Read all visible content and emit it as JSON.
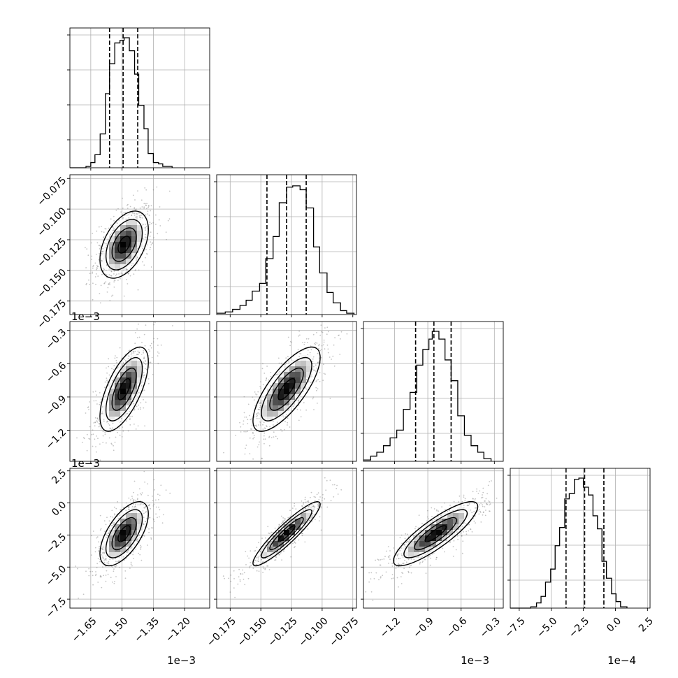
{
  "chart_data": {
    "type": "corner",
    "grid": true,
    "params": [
      {
        "id": "p0",
        "range": [
          -0.00175,
          -0.00108
        ],
        "ticks": [
          -0.00165,
          -0.0015,
          -0.00135,
          -0.0012
        ],
        "tick_labels": [
          "−1.65",
          "−1.50",
          "−1.35",
          "−1.20"
        ],
        "offset_label": "1e−3",
        "quantiles": [
          -0.00156,
          -0.001495,
          -0.001425
        ],
        "hist_bins": [
          [
            -0.00175,
            0.0
          ],
          [
            -0.001673,
            0.01
          ],
          [
            -0.00165,
            0.04
          ],
          [
            -0.00163,
            0.1
          ],
          [
            -0.001605,
            0.26
          ],
          [
            -0.00158,
            0.57
          ],
          [
            -0.00156,
            0.8
          ],
          [
            -0.001535,
            0.96
          ],
          [
            -0.00151,
            0.98
          ],
          [
            -0.00149,
            1.0
          ],
          [
            -0.001465,
            0.9
          ],
          [
            -0.00144,
            0.72
          ],
          [
            -0.00142,
            0.48
          ],
          [
            -0.001395,
            0.3
          ],
          [
            -0.001375,
            0.11
          ],
          [
            -0.00135,
            0.04
          ],
          [
            -0.001325,
            0.03
          ],
          [
            -0.001305,
            0.01
          ],
          [
            -0.001283,
            0.01
          ],
          [
            -0.00126,
            0.0
          ]
        ]
      },
      {
        "id": "p1",
        "range": [
          -0.186,
          -0.072
        ],
        "ticks": [
          -0.175,
          -0.15,
          -0.125,
          -0.1,
          -0.075
        ],
        "tick_labels": [
          "−0.175",
          "−0.150",
          "−0.125",
          "−0.100",
          "−0.075"
        ],
        "offset_label": "",
        "quantiles": [
          -0.145,
          -0.129,
          -0.113
        ],
        "hist_bins": [
          [
            -0.186,
            0.01
          ],
          [
            -0.179,
            0.02
          ],
          [
            -0.173,
            0.04
          ],
          [
            -0.167,
            0.07
          ],
          [
            -0.162,
            0.11
          ],
          [
            -0.157,
            0.18
          ],
          [
            -0.151,
            0.24
          ],
          [
            -0.146,
            0.43
          ],
          [
            -0.14,
            0.6
          ],
          [
            -0.135,
            0.86
          ],
          [
            -0.129,
            0.98
          ],
          [
            -0.124,
            0.99
          ],
          [
            -0.118,
            0.96
          ],
          [
            -0.113,
            0.82
          ],
          [
            -0.107,
            0.52
          ],
          [
            -0.102,
            0.32
          ],
          [
            -0.096,
            0.17
          ],
          [
            -0.091,
            0.09
          ],
          [
            -0.085,
            0.03
          ],
          [
            -0.08,
            0.01
          ],
          [
            -0.074,
            0.0
          ]
        ]
      },
      {
        "id": "p2",
        "range": [
          -0.00148,
          -0.00022
        ],
        "ticks": [
          -0.0012,
          -0.0009,
          -0.0006,
          -0.0003
        ],
        "tick_labels": [
          "−1.2",
          "−0.9",
          "−0.6",
          "−0.3"
        ],
        "offset_label": "1e−3",
        "quantiles": [
          -0.00101,
          -0.000845,
          -0.00069
        ],
        "hist_bins": [
          [
            -0.00148,
            0.01
          ],
          [
            -0.001415,
            0.04
          ],
          [
            -0.00136,
            0.07
          ],
          [
            -0.0013,
            0.12
          ],
          [
            -0.00124,
            0.18
          ],
          [
            -0.00118,
            0.24
          ],
          [
            -0.00112,
            0.4
          ],
          [
            -0.00106,
            0.53
          ],
          [
            -0.001,
            0.74
          ],
          [
            -0.000945,
            0.86
          ],
          [
            -0.00089,
            0.94
          ],
          [
            -0.00086,
            1.0
          ],
          [
            -0.0008,
            0.94
          ],
          [
            -0.000745,
            0.78
          ],
          [
            -0.00069,
            0.62
          ],
          [
            -0.00063,
            0.35
          ],
          [
            -0.00057,
            0.2
          ],
          [
            -0.00051,
            0.12
          ],
          [
            -0.00045,
            0.07
          ],
          [
            -0.000395,
            0.02
          ],
          [
            -0.00033,
            0.0
          ]
        ]
      },
      {
        "id": "p3",
        "range": [
          -0.00082,
          0.00027
        ],
        "ticks": [
          -0.00075,
          -0.0005,
          -0.00025,
          0.0,
          0.00025
        ],
        "tick_labels": [
          "−7.5",
          "−5.0",
          "−2.5",
          "0.0",
          "2.5"
        ],
        "offset_label": "1e−4",
        "quantiles": [
          -0.000385,
          -0.00024,
          -9e-05
        ],
        "hist_bins": [
          [
            -0.00082,
            0.0
          ],
          [
            -0.00066,
            0.01
          ],
          [
            -0.000615,
            0.04
          ],
          [
            -0.00058,
            0.09
          ],
          [
            -0.000545,
            0.2
          ],
          [
            -0.000505,
            0.3
          ],
          [
            -0.00047,
            0.48
          ],
          [
            -0.000435,
            0.62
          ],
          [
            -0.000395,
            0.84
          ],
          [
            -0.00036,
            0.88
          ],
          [
            -0.00032,
            0.99
          ],
          [
            -0.000285,
            1.0
          ],
          [
            -0.00025,
            0.93
          ],
          [
            -0.00021,
            0.87
          ],
          [
            -0.000175,
            0.71
          ],
          [
            -0.00014,
            0.61
          ],
          [
            -0.000105,
            0.36
          ],
          [
            -7e-05,
            0.23
          ],
          [
            -3e-05,
            0.11
          ],
          [
            5e-06,
            0.05
          ],
          [
            4e-05,
            0.01
          ],
          [
            9e-05,
            0.0
          ]
        ]
      }
    ],
    "pairs": [
      {
        "x": "p0",
        "y": "p1",
        "mean": [
          -0.00149,
          -0.129
        ],
        "sd": [
          5.8e-05,
          0.0137
        ],
        "rho": 0.45
      },
      {
        "x": "p0",
        "y": "p2",
        "mean": [
          -0.00149,
          -0.00083
        ],
        "sd": [
          5.8e-05,
          0.00019
        ],
        "rho": 0.65
      },
      {
        "x": "p1",
        "y": "p2",
        "mean": [
          -0.129,
          -0.00083
        ],
        "sd": [
          0.0137,
          0.00019
        ],
        "rho": 0.75
      },
      {
        "x": "p0",
        "y": "p3",
        "mean": [
          -0.00149,
          -0.00024
        ],
        "sd": [
          5.8e-05,
          0.000125
        ],
        "rho": 0.62
      },
      {
        "x": "p1",
        "y": "p3",
        "mean": [
          -0.129,
          -0.00024
        ],
        "sd": [
          0.0137,
          0.000125
        ],
        "rho": 0.92
      },
      {
        "x": "p2",
        "y": "p3",
        "mean": [
          -0.00083,
          -0.00024
        ],
        "sd": [
          0.00019,
          0.000125
        ],
        "rho": 0.85
      }
    ]
  }
}
